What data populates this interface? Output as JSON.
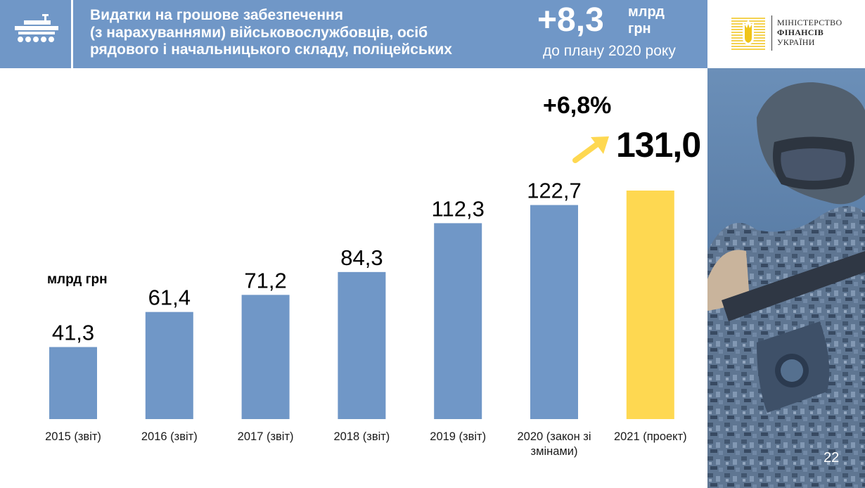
{
  "header": {
    "title_lines": [
      "Видатки на грошове забезпечення",
      "(з нарахуваннями) військовослужбовців, осіб",
      "рядового і начальницького складу, поліцейських"
    ],
    "delta_value": "+8,3",
    "delta_unit_lines": [
      "млрд",
      "грн"
    ],
    "delta_subtitle": "до плану 2020 року",
    "icon": "tank-icon"
  },
  "logo": {
    "lines": [
      "МІНІСТЕРСТВО",
      "ФІНАНСІВ",
      "УКРАЇНИ"
    ],
    "icon": "trident-emblem-icon"
  },
  "page_number": "22",
  "annotation": {
    "growth": "+6,8%",
    "highlight_value": "131,0",
    "arrow_icon": "arrow-up-right-icon"
  },
  "colors": {
    "header_bg": "#7097c7",
    "bar_fact": "#7097c7",
    "bar_project": "#fed851",
    "arrow": "#fed851"
  },
  "chart_data": {
    "type": "bar",
    "unit_label": "млрд грн",
    "categories": [
      "2015 (звіт)",
      "2016 (звіт)",
      "2017 (звіт)",
      "2018 (звіт)",
      "2019 (звіт)",
      "2020 (закон зі змінами)",
      "2021 (проект)"
    ],
    "values": [
      41.3,
      61.4,
      71.2,
      84.3,
      112.3,
      122.7,
      131.0
    ],
    "value_labels": [
      "41,3",
      "61,4",
      "71,2",
      "84,3",
      "112,3",
      "122,7",
      ""
    ],
    "bar_colors": [
      "#7097c7",
      "#7097c7",
      "#7097c7",
      "#7097c7",
      "#7097c7",
      "#7097c7",
      "#fed851"
    ],
    "ylim": [
      0,
      131.0
    ],
    "grid": false,
    "legend": false
  }
}
